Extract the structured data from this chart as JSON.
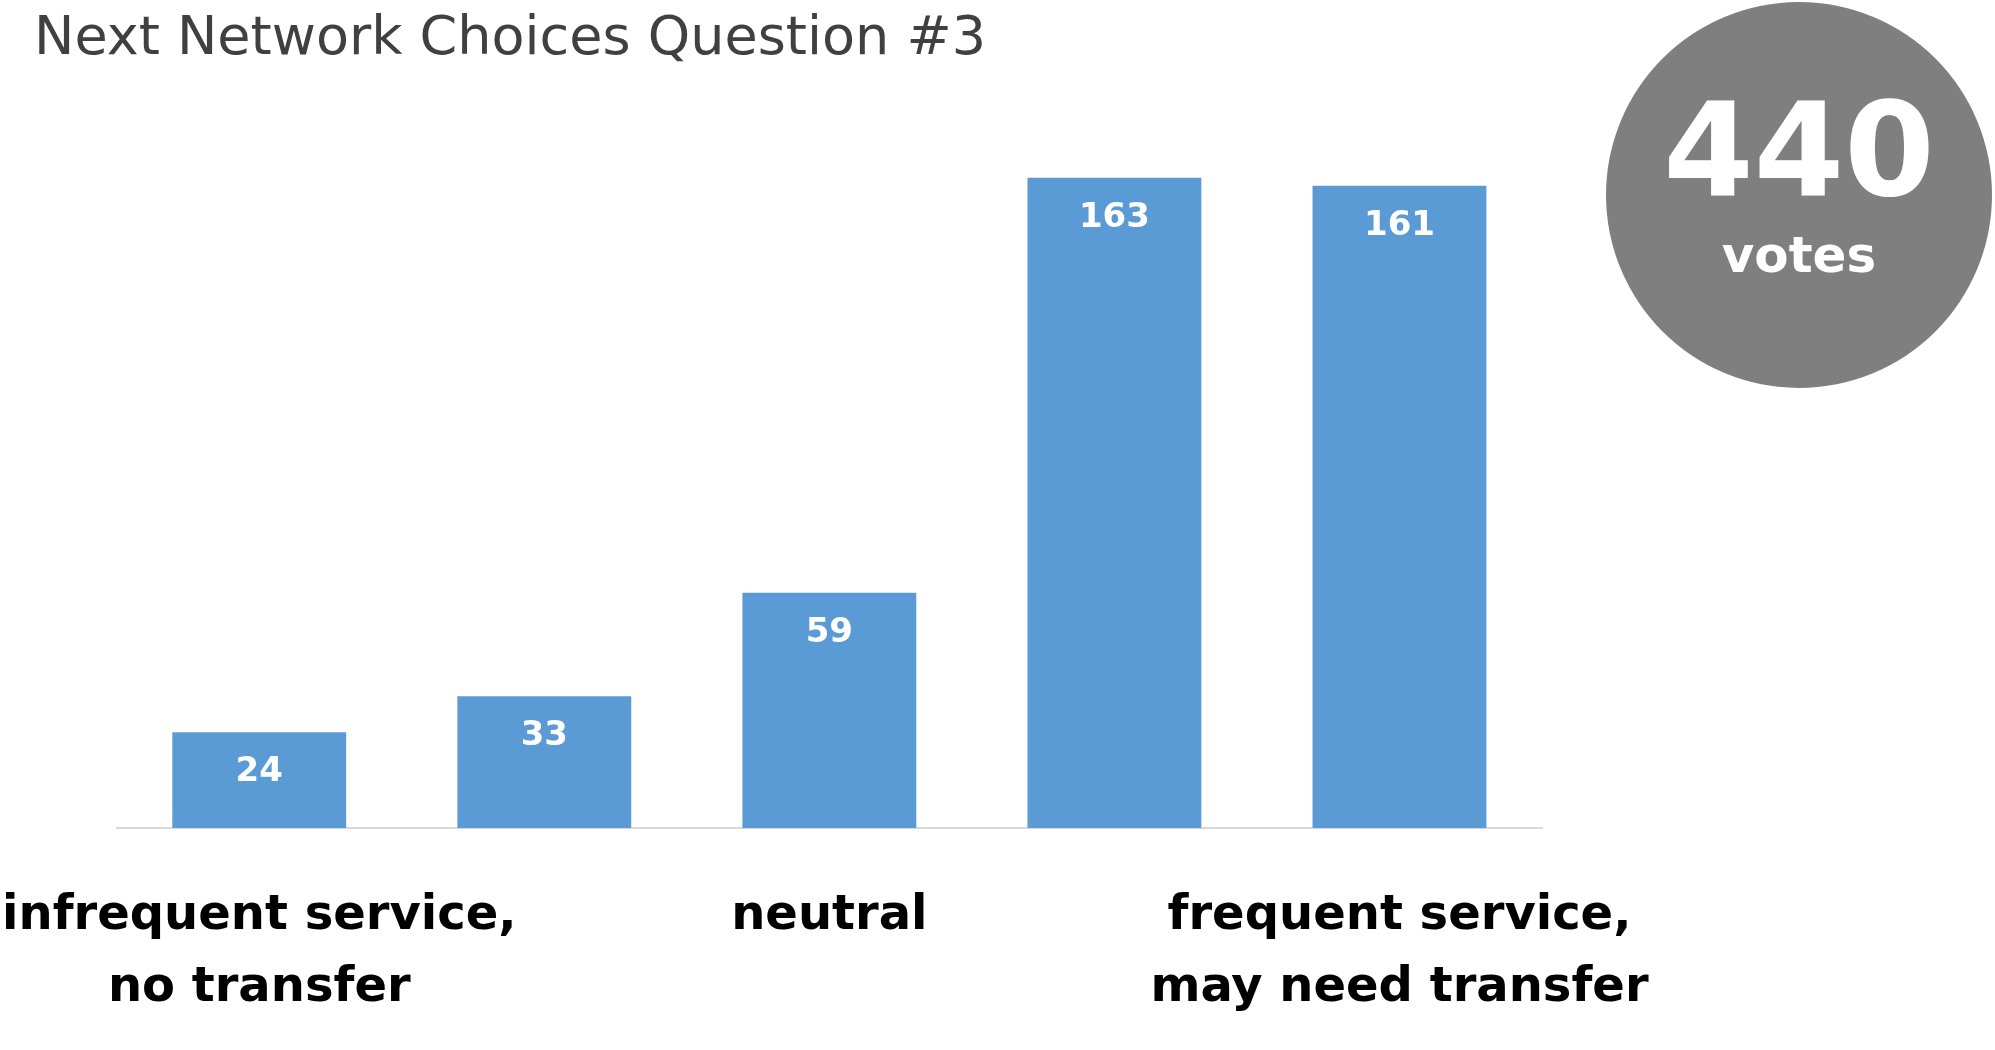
{
  "chart_data": {
    "type": "bar",
    "title": "Next Network Choices Question #3",
    "categories": [
      "infrequent service,\nno transfer",
      null,
      "neutral",
      null,
      "frequent service,\nmay need transfer"
    ],
    "values": [
      24,
      33,
      59,
      163,
      161
    ],
    "color": "#5b9bd5",
    "data_labels": true,
    "annotations": [
      "440",
      "votes"
    ]
  }
}
